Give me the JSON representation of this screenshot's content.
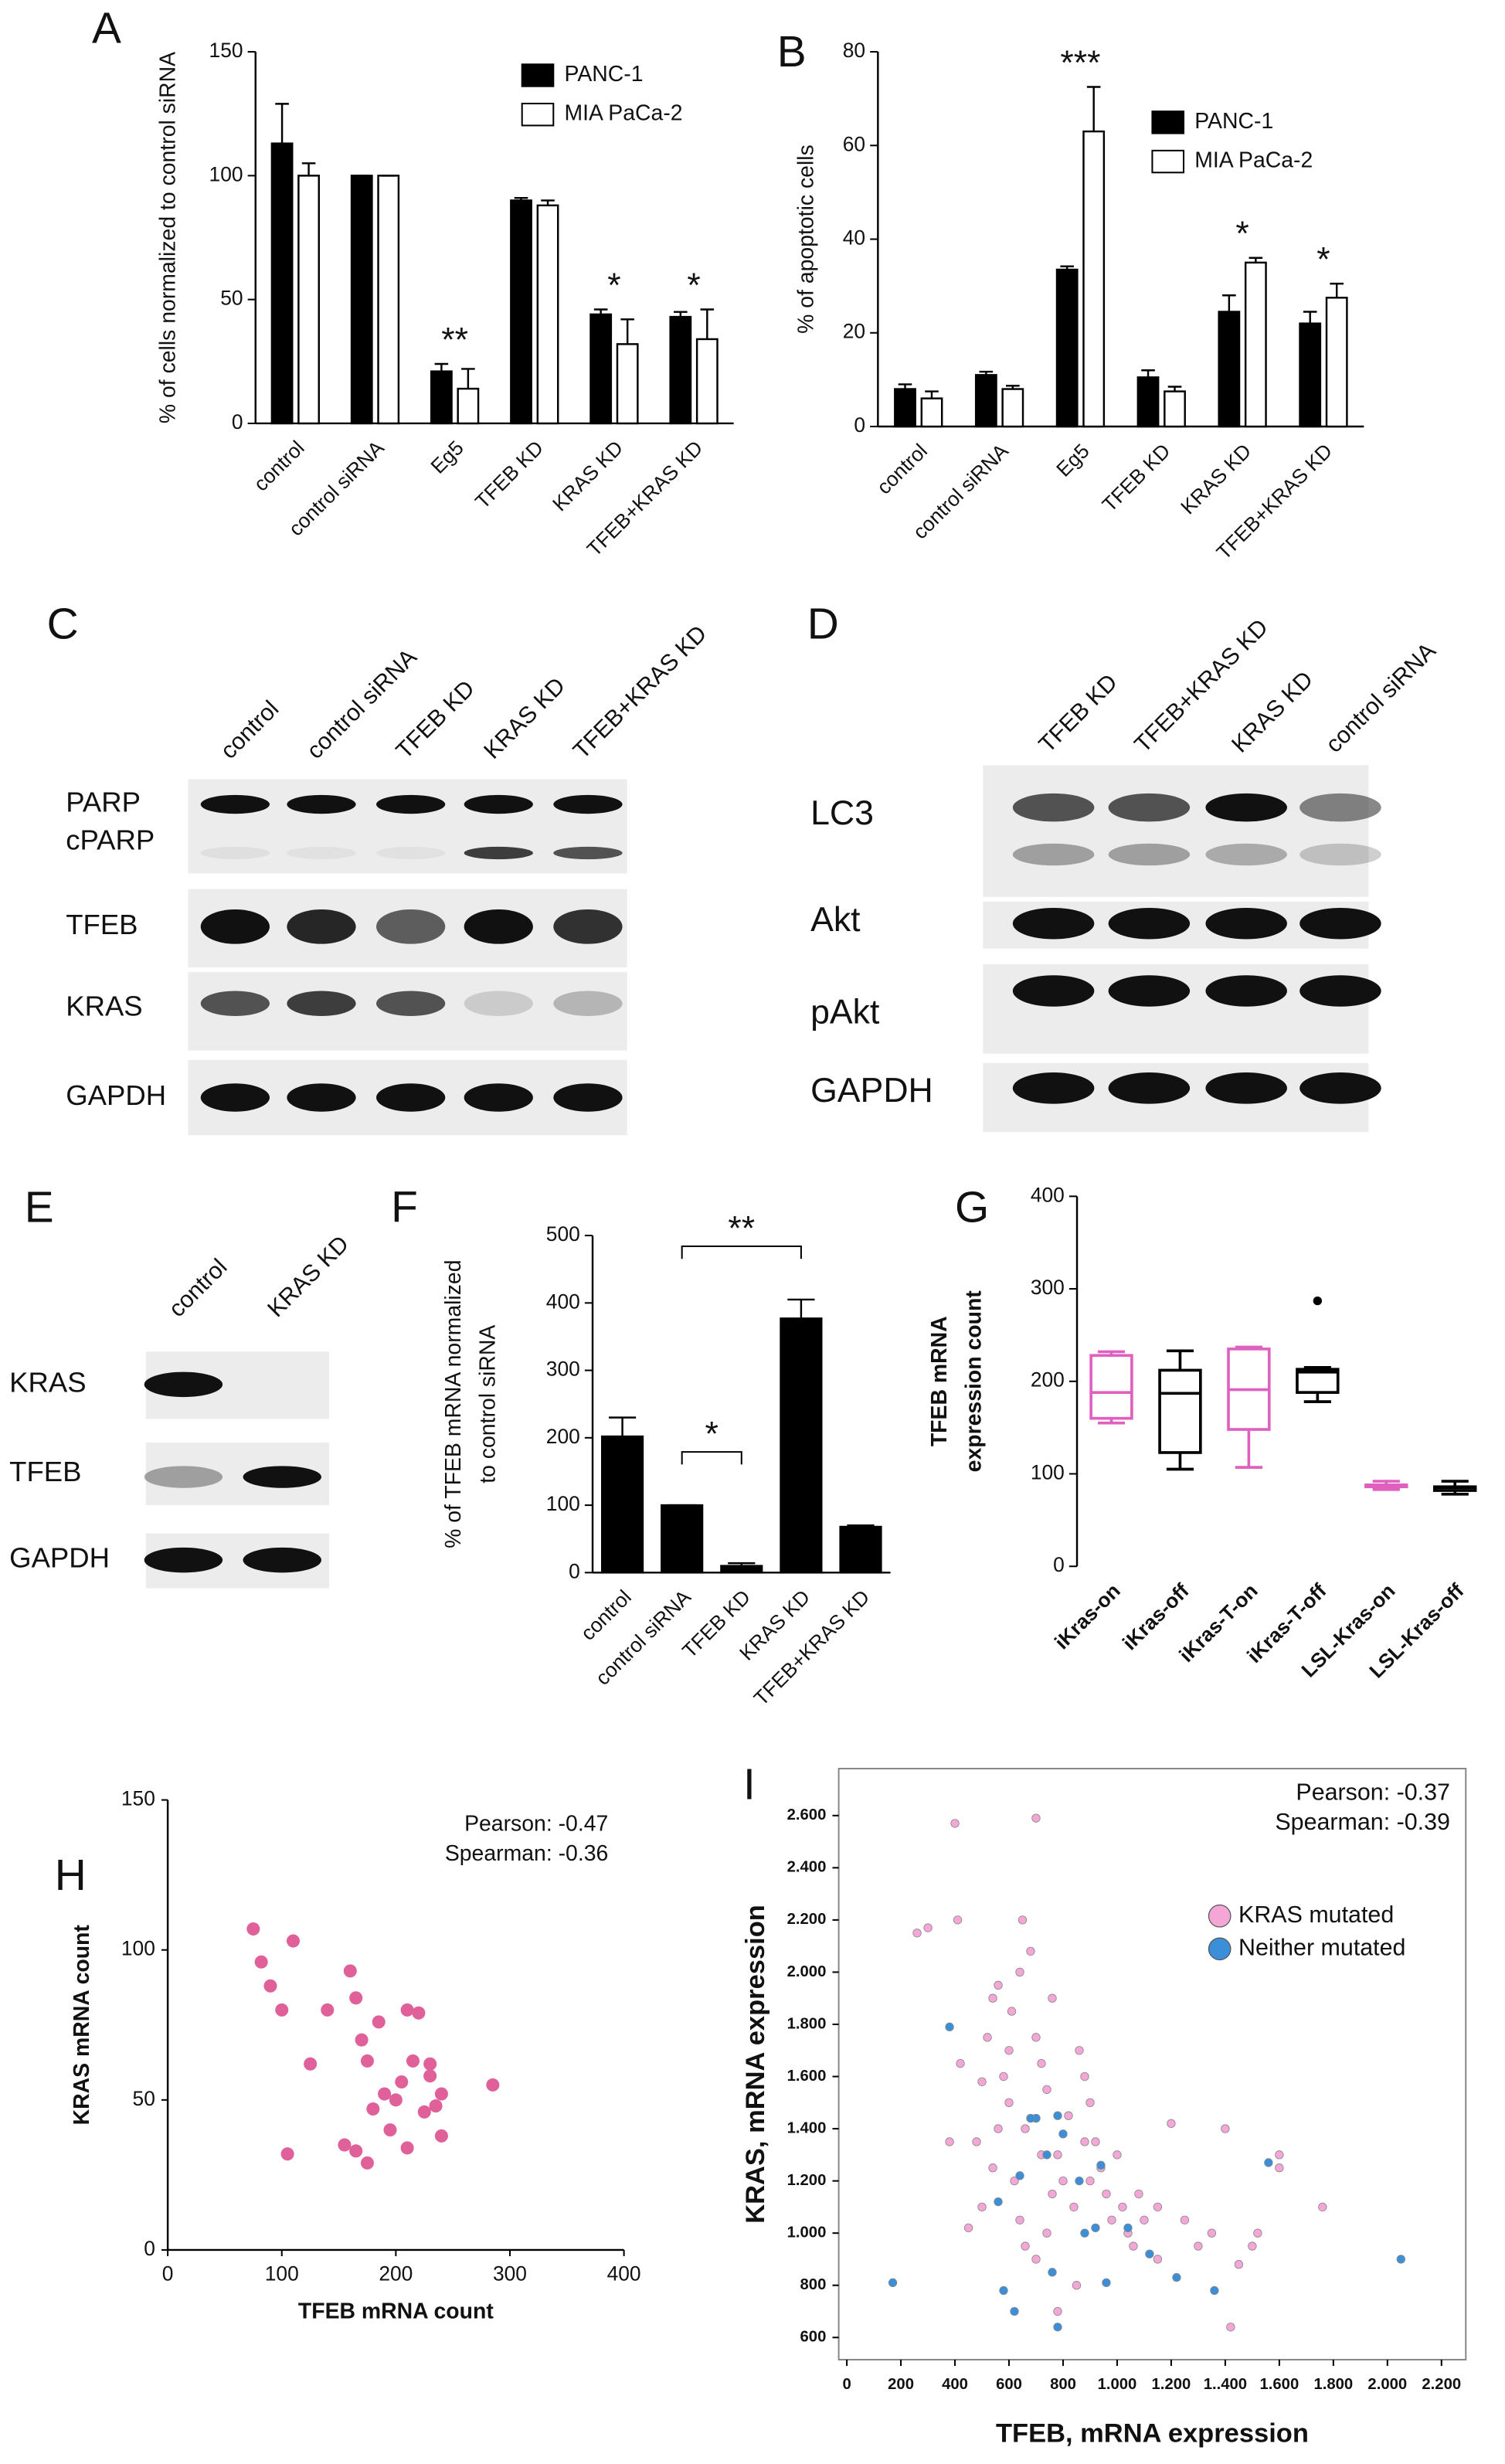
{
  "chart_data": [
    {
      "panel": "A",
      "type": "bar",
      "categories": [
        "control",
        "control siRNA",
        "Eg5",
        "TFEB KD",
        "KRAS KD",
        "TFEB+KRAS KD"
      ],
      "ylabel": "% of cells normalized to control siRNA",
      "ylim": [
        0,
        150
      ],
      "yticks": [
        0,
        50,
        100,
        150
      ],
      "series": [
        {
          "name": "PANC-1",
          "color": "#000000",
          "values": [
            113,
            100,
            21,
            90,
            44,
            43
          ],
          "errors": [
            16,
            0,
            3,
            1,
            2,
            2
          ]
        },
        {
          "name": "MIA PaCa-2",
          "color": "#ffffff",
          "values": [
            100,
            100,
            14,
            88,
            32,
            34
          ],
          "errors": [
            5,
            0,
            8,
            2,
            10,
            12
          ]
        }
      ],
      "significance": [
        null,
        null,
        "**",
        null,
        "*",
        "*"
      ]
    },
    {
      "panel": "B",
      "type": "bar",
      "categories": [
        "control",
        "control siRNA",
        "Eg5",
        "TFEB KD",
        "KRAS KD",
        "TFEB+KRAS KD"
      ],
      "ylabel": "% of apoptotic cells",
      "ylim": [
        0,
        80
      ],
      "yticks": [
        0,
        20,
        40,
        60,
        80
      ],
      "series": [
        {
          "name": "PANC-1",
          "color": "#000000",
          "values": [
            8,
            11,
            33.5,
            10.5,
            24.5,
            22
          ],
          "errors": [
            1,
            0.7,
            0.7,
            1.5,
            3.5,
            2.5
          ]
        },
        {
          "name": "MIA PaCa-2",
          "color": "#ffffff",
          "values": [
            6,
            8,
            63,
            7.5,
            35,
            27.5
          ],
          "errors": [
            1.5,
            0.7,
            9.5,
            1,
            1,
            3
          ]
        }
      ],
      "significance": [
        null,
        null,
        "***",
        null,
        "*",
        "*"
      ]
    },
    {
      "panel": "F",
      "type": "bar",
      "categories": [
        "control",
        "control siRNA",
        "TFEB KD",
        "KRAS KD",
        "TFEB+KRAS KD"
      ],
      "ylabel": [
        "% of TFEB mRNA normalized",
        "to control siRNA"
      ],
      "ylim": [
        0,
        500
      ],
      "yticks": [
        0,
        100,
        200,
        300,
        400,
        500
      ],
      "color": "#000000",
      "values": [
        202,
        100,
        10,
        377,
        68
      ],
      "errors": [
        28,
        0,
        4,
        28,
        2
      ],
      "brackets": [
        {
          "from": "control siRNA",
          "to": "TFEB KD",
          "label": "*"
        },
        {
          "from": "control siRNA",
          "to": "KRAS KD",
          "label": "**"
        }
      ]
    },
    {
      "panel": "G",
      "type": "box",
      "categories": [
        "iKras-on",
        "iKras-off",
        "iKras-T-on",
        "iKras-T-off",
        "LSL-Kras-on",
        "LSL-Kras-off"
      ],
      "ylabel": [
        "TFEB mRNA",
        "expression count"
      ],
      "ylim": [
        0,
        400
      ],
      "yticks": [
        0,
        100,
        200,
        300,
        400
      ],
      "boxes": [
        {
          "color": "#e060c0",
          "min": 155,
          "q1": 160,
          "median": 188,
          "q3": 228,
          "max": 232
        },
        {
          "color": "#000000",
          "min": 105,
          "q1": 123,
          "median": 187,
          "q3": 212,
          "max": 233
        },
        {
          "color": "#e060c0",
          "min": 107,
          "q1": 148,
          "median": 191,
          "q3": 235,
          "max": 237
        },
        {
          "color": "#000000",
          "min": 178,
          "q1": 188,
          "median": 210,
          "q3": 213,
          "max": 215,
          "outliers": [
            287
          ]
        },
        {
          "color": "#e060c0",
          "min": 83,
          "q1": 86,
          "median": 88,
          "q3": 88,
          "max": 92
        },
        {
          "color": "#000000",
          "min": 78,
          "q1": 82,
          "median": 85,
          "q3": 86,
          "max": 92
        }
      ]
    },
    {
      "panel": "H",
      "type": "scatter",
      "xlabel": "TFEB mRNA count",
      "ylabel": "KRAS mRNA count",
      "xlim": [
        0,
        400
      ],
      "xticks": [
        0,
        100,
        200,
        300,
        400
      ],
      "ylim": [
        0,
        150
      ],
      "yticks": [
        0,
        50,
        100,
        150
      ],
      "annotations": [
        "Pearson: -0.47",
        "Spearman: -0.36"
      ],
      "series": [
        {
          "color": "#e0609a",
          "x": [
            75,
            82,
            90,
            100,
            110,
            105,
            125,
            140,
            160,
            165,
            170,
            175,
            180,
            185,
            190,
            195,
            200,
            205,
            210,
            215,
            220,
            225,
            230,
            235,
            240,
            240,
            155,
            165,
            175,
            210,
            285,
            230
          ],
          "y": [
            107,
            96,
            88,
            80,
            103,
            32,
            62,
            80,
            93,
            84,
            70,
            63,
            47,
            76,
            52,
            40,
            50,
            56,
            80,
            63,
            79,
            46,
            62,
            48,
            38,
            52,
            35,
            33,
            29,
            34,
            55,
            58
          ]
        }
      ]
    },
    {
      "panel": "I",
      "type": "scatter",
      "xlabel": "TFEB, mRNA expression",
      "ylabel": "KRAS, mRNA expression",
      "xlim": [
        -30,
        2290
      ],
      "xticks": [
        0,
        200,
        400,
        600,
        800,
        {
          "value": 1000,
          "label": "1.000"
        },
        {
          "value": 1200,
          "label": "1.200"
        },
        {
          "value": 1400,
          "label": "1..400"
        },
        {
          "value": 1600,
          "label": "1.600"
        },
        {
          "value": 1800,
          "label": "1.800"
        },
        {
          "value": 2000,
          "label": "2.000"
        },
        {
          "value": 2200,
          "label": "2.200"
        }
      ],
      "ylim": [
        515,
        2780
      ],
      "yticks": [
        600,
        800,
        {
          "value": 1000,
          "label": "1.000"
        },
        {
          "value": 1200,
          "label": "1.200"
        },
        {
          "value": 1400,
          "label": "1.400"
        },
        {
          "value": 1600,
          "label": "1.600"
        },
        {
          "value": 1800,
          "label": "1.800"
        },
        {
          "value": 2000,
          "label": "2.000"
        },
        {
          "value": 2200,
          "label": "2.200"
        },
        {
          "value": 2400,
          "label": "2.400"
        },
        {
          "value": 2600,
          "label": "2.600"
        }
      ],
      "annotations": [
        "Pearson: -0.37",
        "Spearman: -0.39"
      ],
      "series": [
        {
          "name": "KRAS mutated",
          "color": "#f4a6d7",
          "x": [
            260,
            300,
            400,
            410,
            700,
            480,
            500,
            520,
            540,
            560,
            580,
            600,
            610,
            640,
            650,
            660,
            680,
            700,
            720,
            740,
            760,
            780,
            800,
            820,
            840,
            860,
            880,
            900,
            920,
            940,
            960,
            980,
            1000,
            1020,
            1040,
            1060,
            1080,
            1100,
            1150,
            1200,
            1250,
            1300,
            1350,
            1400,
            1450,
            1500,
            1520,
            1600,
            1600,
            1760,
            620,
            640,
            660,
            700,
            720,
            760,
            500,
            540,
            450,
            380,
            420,
            880,
            850,
            780,
            900,
            1150,
            1420,
            560,
            600,
            740
          ],
          "y": [
            2150,
            2170,
            2570,
            2200,
            2590,
            1350,
            1580,
            1750,
            1900,
            1950,
            1600,
            1500,
            1850,
            2000,
            2200,
            1400,
            2080,
            1750,
            1650,
            1550,
            1900,
            1300,
            1200,
            1450,
            1100,
            1700,
            1600,
            1500,
            1350,
            1250,
            1150,
            1050,
            1300,
            1100,
            1000,
            950,
            1150,
            1050,
            900,
            1420,
            1050,
            950,
            1000,
            1400,
            880,
            950,
            1000,
            1300,
            1250,
            1100,
            1200,
            1050,
            950,
            900,
            1300,
            1150,
            1100,
            1250,
            1020,
            1350,
            1650,
            1350,
            800,
            700,
            1200,
            1100,
            640,
            1400,
            1700,
            1000
          ]
        },
        {
          "name": "Neither mutated",
          "color": "#3a8fd8",
          "x": [
            170,
            380,
            560,
            580,
            640,
            700,
            740,
            780,
            800,
            860,
            880,
            920,
            940,
            960,
            1040,
            1120,
            1220,
            1360,
            1560,
            2050,
            760,
            780,
            620,
            680
          ],
          "y": [
            810,
            1790,
            1120,
            780,
            1220,
            1440,
            1300,
            1450,
            1380,
            1200,
            1000,
            1020,
            1260,
            810,
            1020,
            920,
            830,
            780,
            1270,
            900,
            850,
            640,
            700,
            1440
          ]
        }
      ]
    }
  ],
  "blots": [
    {
      "panel": "C",
      "lanes": [
        "control",
        "control siRNA",
        "TFEB KD",
        "KRAS KD",
        "TFEB+KRAS KD"
      ],
      "rows": [
        "PARP",
        "cPARP",
        "TFEB",
        "KRAS",
        "GAPDH"
      ]
    },
    {
      "panel": "D",
      "lanes": [
        "TFEB KD",
        "TFEB+KRAS KD",
        "KRAS KD",
        "control siRNA"
      ],
      "rows": [
        "LC3",
        "Akt",
        "pAkt",
        "GAPDH"
      ]
    },
    {
      "panel": "E",
      "lanes": [
        "control",
        "KRAS KD"
      ],
      "rows": [
        "KRAS",
        "TFEB",
        "GAPDH"
      ]
    }
  ]
}
